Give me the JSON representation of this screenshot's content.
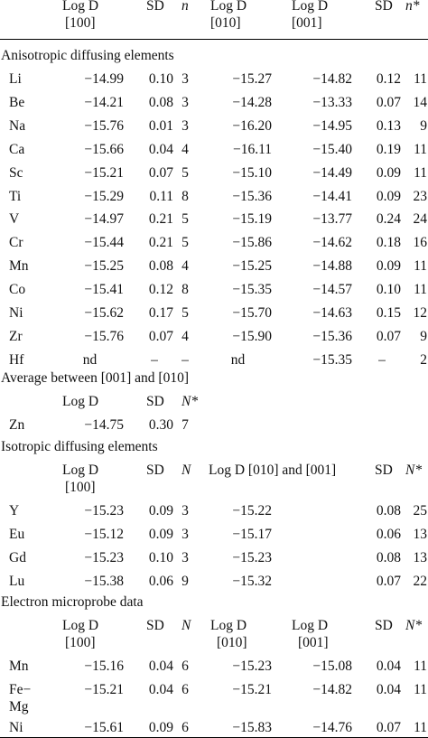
{
  "header": {
    "h1": [
      "Log D",
      "[100]"
    ],
    "h2": "SD",
    "h3": "n",
    "h4": [
      "Log D",
      "[010]"
    ],
    "h5": [
      "Log D",
      "[001]"
    ],
    "h6": "SD",
    "h7": "n*"
  },
  "anisotropic": {
    "title": "Anisotropic diffusing elements",
    "rows": [
      {
        "el": "Li",
        "d100": "−14.99",
        "sd1": "0.10",
        "n": "3",
        "d010": "−15.27",
        "d001": "−14.82",
        "sd2": "0.12",
        "n2": "11"
      },
      {
        "el": "Be",
        "d100": "−14.21",
        "sd1": "0.08",
        "n": "3",
        "d010": "−14.28",
        "d001": "−13.33",
        "sd2": "0.07",
        "n2": "14"
      },
      {
        "el": "Na",
        "d100": "−15.76",
        "sd1": "0.01",
        "n": "3",
        "d010": "−16.20",
        "d001": "−14.95",
        "sd2": "0.13",
        "n2": "9"
      },
      {
        "el": "Ca",
        "d100": "−15.66",
        "sd1": "0.04",
        "n": "4",
        "d010": "−16.11",
        "d001": "−15.40",
        "sd2": "0.19",
        "n2": "11"
      },
      {
        "el": "Sc",
        "d100": "−15.21",
        "sd1": "0.07",
        "n": "5",
        "d010": "−15.10",
        "d001": "−14.49",
        "sd2": "0.09",
        "n2": "11"
      },
      {
        "el": "Ti",
        "d100": "−15.29",
        "sd1": "0.11",
        "n": "8",
        "d010": "−15.36",
        "d001": "−14.41",
        "sd2": "0.09",
        "n2": "23"
      },
      {
        "el": "V",
        "d100": "−14.97",
        "sd1": "0.21",
        "n": "5",
        "d010": "−15.19",
        "d001": "−13.77",
        "sd2": "0.24",
        "n2": "24"
      },
      {
        "el": "Cr",
        "d100": "−15.44",
        "sd1": "0.21",
        "n": "5",
        "d010": "−15.86",
        "d001": "−14.62",
        "sd2": "0.18",
        "n2": "16"
      },
      {
        "el": "Mn",
        "d100": "−15.25",
        "sd1": "0.08",
        "n": "4",
        "d010": "−15.25",
        "d001": "−14.88",
        "sd2": "0.09",
        "n2": "11"
      },
      {
        "el": "Co",
        "d100": "−15.41",
        "sd1": "0.12",
        "n": "8",
        "d010": "−15.35",
        "d001": "−14.57",
        "sd2": "0.10",
        "n2": "11"
      },
      {
        "el": "Ni",
        "d100": "−15.62",
        "sd1": "0.17",
        "n": "5",
        "d010": "−15.70",
        "d001": "−14.63",
        "sd2": "0.15",
        "n2": "12"
      },
      {
        "el": "Zr",
        "d100": "−15.76",
        "sd1": "0.07",
        "n": "4",
        "d010": "−15.90",
        "d001": "−15.36",
        "sd2": "0.07",
        "n2": "9"
      },
      {
        "el": "Hf",
        "d100": "nd",
        "sd1": "–",
        "n": "–",
        "d010": "nd",
        "d001": "−15.35",
        "sd2": "–",
        "n2": "2"
      }
    ]
  },
  "average": {
    "title": "Average between [001] and [010]",
    "h1": "Log D",
    "h2": "SD",
    "h3": "N*",
    "row": {
      "el": "Zn",
      "d": "−14.75",
      "sd": "0.30",
      "n": "7"
    }
  },
  "isotropic": {
    "title": "Isotropic diffusing elements",
    "h1": [
      "Log D",
      "[100]"
    ],
    "h2": "SD",
    "h3": "N",
    "h4": "Log D [010] and [001]",
    "h5": "SD",
    "h6": "N*",
    "rows": [
      {
        "el": "Y",
        "d100": "−15.23",
        "sd1": "0.09",
        "n": "3",
        "d": "−15.22",
        "sd2": "0.08",
        "n2": "25"
      },
      {
        "el": "Eu",
        "d100": "−15.12",
        "sd1": "0.09",
        "n": "3",
        "d": "−15.17",
        "sd2": "0.06",
        "n2": "13"
      },
      {
        "el": "Gd",
        "d100": "−15.23",
        "sd1": "0.10",
        "n": "3",
        "d": "−15.23",
        "sd2": "0.08",
        "n2": "13"
      },
      {
        "el": "Lu",
        "d100": "−15.38",
        "sd1": "0.06",
        "n": "9",
        "d": "−15.32",
        "sd2": "0.07",
        "n2": "22"
      }
    ]
  },
  "microprobe": {
    "title": "Electron microprobe data",
    "h1": [
      "Log D",
      "[100]"
    ],
    "h2": "SD",
    "h3": "N",
    "h4": [
      "Log D",
      "[010]"
    ],
    "h5": [
      "Log D",
      "[001]"
    ],
    "h6": "SD",
    "h7": "N*",
    "rows": [
      {
        "el": "Mn",
        "d100": "−15.16",
        "sd1": "0.04",
        "n": "6",
        "d010": "−15.23",
        "d001": "−15.08",
        "sd2": "0.04",
        "n2": "11"
      },
      {
        "el": "Fe−",
        "el2": "Mg",
        "d100": "−15.21",
        "sd1": "0.04",
        "n": "6",
        "d010": "−15.21",
        "d001": "−14.82",
        "sd2": "0.04",
        "n2": "11"
      },
      {
        "el": "Ni",
        "d100": "−15.61",
        "sd1": "0.09",
        "n": "6",
        "d010": "−15.83",
        "d001": "−14.76",
        "sd2": "0.07",
        "n2": "11"
      }
    ]
  }
}
